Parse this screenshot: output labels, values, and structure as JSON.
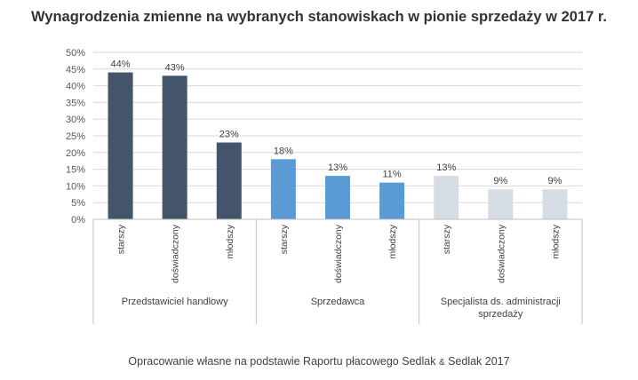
{
  "chart_data": {
    "type": "bar",
    "title": "Wynagrodzenia zmienne na wybranych stanowiskach w pionie sprzedaży w 2017 r.",
    "source_pre": "Opracowanie własne na podstawie Raportu płacowego Sedlak ",
    "source_amp": "&",
    "source_post": " Sedlak 2017",
    "ylim": [
      0,
      50
    ],
    "ytick_step": 5,
    "ytick_suffix": "%",
    "grid": true,
    "groups": [
      {
        "name": "Przedstawiciel handlowy",
        "color": "#44546a",
        "bars": [
          {
            "label": "starszy",
            "value": 44
          },
          {
            "label": "doświadczony",
            "value": 43
          },
          {
            "label": "młodszy",
            "value": 23
          }
        ]
      },
      {
        "name": "Sprzedawca",
        "color": "#5b9bd5",
        "bars": [
          {
            "label": "starszy",
            "value": 18
          },
          {
            "label": "doświadczony",
            "value": 13
          },
          {
            "label": "młodszy",
            "value": 11
          }
        ]
      },
      {
        "name": "Specjalista ds. administracji sprzedaży",
        "name_lines": [
          "Specjalista ds. administracji",
          "sprzedaży"
        ],
        "color": "#d6dce4",
        "bars": [
          {
            "label": "starszy",
            "value": 13
          },
          {
            "label": "doświadczony",
            "value": 9
          },
          {
            "label": "młodszy",
            "value": 9
          }
        ]
      }
    ]
  }
}
